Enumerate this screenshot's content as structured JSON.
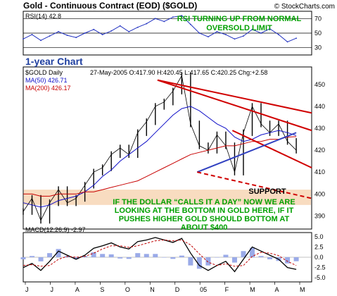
{
  "header": {
    "title": "Gold - Continuous Contract (EOD) ($GOLD)",
    "credit": "© StockCharts.com"
  },
  "rsi_panel": {
    "label": "RSI(14) 42.8",
    "annotation_line1": "RSI TURNING UP FROM NORMAL",
    "annotation_line2": "OVERSOLD LIMIT",
    "ticks": [
      "70",
      "50",
      "30"
    ]
  },
  "price_panel": {
    "period_label": "1-year Chart",
    "symbol_label": "$GOLD Daily",
    "ohlc_label": "27-May-2005 O:417.90 H:420.45 L:417.65 C:420.25 Chg:+2.58",
    "ma50_label": "MA(50) 426.71",
    "ma200_label": "MA(200) 426.17",
    "support_label": "SUPPORT",
    "commentary": [
      "IF THE DOLLAR “CALLS IT A DAY” NOW WE ARE",
      "LOOKING AT THE BOTTOM IN GOLD HERE, IF IT",
      "PUSHES HIGHER GOLD SHOULD BOTTOM AT",
      "ABOUT $400"
    ],
    "ticks": [
      "450",
      "440",
      "430",
      "420",
      "410",
      "400",
      "390"
    ]
  },
  "macd_panel": {
    "label": "MACD(12,26,9) -2.97",
    "ticks": [
      "5.0",
      "2.5",
      "0.0",
      "-2.5",
      "-5.0"
    ]
  },
  "x_axis": {
    "labels": [
      "J",
      "J",
      "A",
      "S",
      "O",
      "N",
      "D",
      "05",
      "F",
      "M",
      "A",
      "M"
    ]
  },
  "colors": {
    "price_bars": "#000000",
    "ma50": "#1010c8",
    "ma200": "#c80000",
    "trendline_red": "#d00000",
    "trendline_blue": "#3040c0",
    "support_band": "#f8dcc0",
    "annotation_text": "#00a000",
    "label_blue": "#2040a0"
  },
  "chart_data": [
    {
      "type": "line",
      "title": "RSI(14)",
      "ylim": [
        20,
        80
      ],
      "reference_lines": [
        70,
        50,
        30
      ],
      "x": [
        0,
        8,
        16,
        24,
        32,
        40,
        48,
        56,
        64,
        72,
        80,
        88,
        96,
        104,
        112,
        120,
        128,
        136,
        144,
        152,
        160,
        168,
        176,
        184,
        192,
        200,
        208,
        216,
        224,
        232,
        240,
        248
      ],
      "values": [
        42,
        48,
        40,
        46,
        52,
        47,
        44,
        50,
        55,
        48,
        53,
        60,
        52,
        58,
        63,
        70,
        66,
        72,
        74,
        62,
        50,
        45,
        52,
        48,
        42,
        46,
        55,
        50,
        56,
        48,
        38,
        43
      ]
    },
    {
      "type": "line",
      "title": "$GOLD Daily",
      "ylim": [
        384,
        458
      ],
      "support_band": [
        395,
        402
      ],
      "x": [
        0,
        8,
        16,
        24,
        32,
        40,
        48,
        56,
        64,
        72,
        80,
        88,
        96,
        104,
        112,
        120,
        128,
        136,
        144,
        152,
        160,
        168,
        176,
        184,
        192,
        200,
        208,
        216,
        224,
        232,
        240,
        248
      ],
      "series": [
        {
          "name": "$GOLD Daily",
          "values": [
            392,
            398,
            388,
            396,
            402,
            396,
            398,
            404,
            410,
            412,
            418,
            421,
            418,
            428,
            433,
            440,
            442,
            447,
            454,
            432,
            422,
            420,
            427,
            422,
            410,
            428,
            440,
            432,
            428,
            432,
            424,
            420
          ]
        },
        {
          "name": "MA(50)",
          "values": [
            396,
            395,
            394,
            395,
            397,
            398,
            399,
            401,
            404,
            408,
            411,
            415,
            418,
            421,
            424,
            428,
            432,
            436,
            439,
            440,
            438,
            435,
            432,
            430,
            426,
            424,
            425,
            427,
            428,
            429,
            428,
            426.71
          ]
        },
        {
          "name": "MA(200)",
          "values": [
            400,
            400,
            399,
            399,
            400,
            400,
            400,
            401,
            401,
            402,
            403,
            404,
            405,
            406,
            408,
            410,
            412,
            414,
            416,
            418,
            419,
            420,
            421,
            422,
            422,
            423,
            424,
            424,
            425,
            425,
            426,
            426.17
          ]
        }
      ],
      "trendlines": [
        {
          "color": "red",
          "style": "solid",
          "from": [
            122,
            452
          ],
          "to": [
            262,
            437
          ]
        },
        {
          "color": "red",
          "style": "solid",
          "from": [
            122,
            452
          ],
          "to": [
            262,
            429
          ]
        },
        {
          "color": "red",
          "style": "solid",
          "from": [
            190,
            429
          ],
          "to": [
            262,
            412
          ]
        },
        {
          "color": "blue",
          "style": "solid",
          "from": [
            158,
            410
          ],
          "to": [
            248,
            428
          ]
        },
        {
          "color": "red",
          "style": "dashed",
          "from": [
            158,
            410
          ],
          "to": [
            262,
            398
          ]
        }
      ]
    },
    {
      "type": "line",
      "title": "MACD(12,26,9)",
      "ylim": [
        -6,
        6
      ],
      "x": [
        0,
        8,
        16,
        24,
        32,
        40,
        48,
        56,
        64,
        72,
        80,
        88,
        96,
        104,
        112,
        120,
        128,
        136,
        144,
        152,
        160,
        168,
        176,
        184,
        192,
        200,
        208,
        216,
        224,
        232,
        240,
        248
      ],
      "series": [
        {
          "name": "MACD",
          "values": [
            -2.5,
            -1.5,
            -3.2,
            -1.0,
            1.5,
            0.5,
            -0.5,
            0.5,
            2.2,
            2.8,
            3.5,
            2.5,
            2.0,
            3.8,
            4.2,
            4.8,
            4.2,
            3.6,
            4.6,
            1.0,
            -2.0,
            -3.2,
            -2.0,
            -1.0,
            -3.5,
            -0.5,
            2.5,
            1.5,
            0.5,
            -0.5,
            -2.5,
            -2.97
          ]
        },
        {
          "name": "Signal",
          "values": [
            -2.0,
            -1.8,
            -2.2,
            -2.0,
            -0.5,
            0.2,
            0.0,
            0.2,
            1.0,
            2.0,
            2.8,
            2.8,
            2.4,
            2.8,
            3.4,
            4.0,
            4.2,
            4.0,
            4.2,
            3.0,
            0.8,
            -1.2,
            -2.0,
            -1.6,
            -2.2,
            -2.0,
            0.2,
            1.2,
            1.0,
            0.4,
            -1.0,
            -2.0
          ]
        }
      ]
    }
  ]
}
